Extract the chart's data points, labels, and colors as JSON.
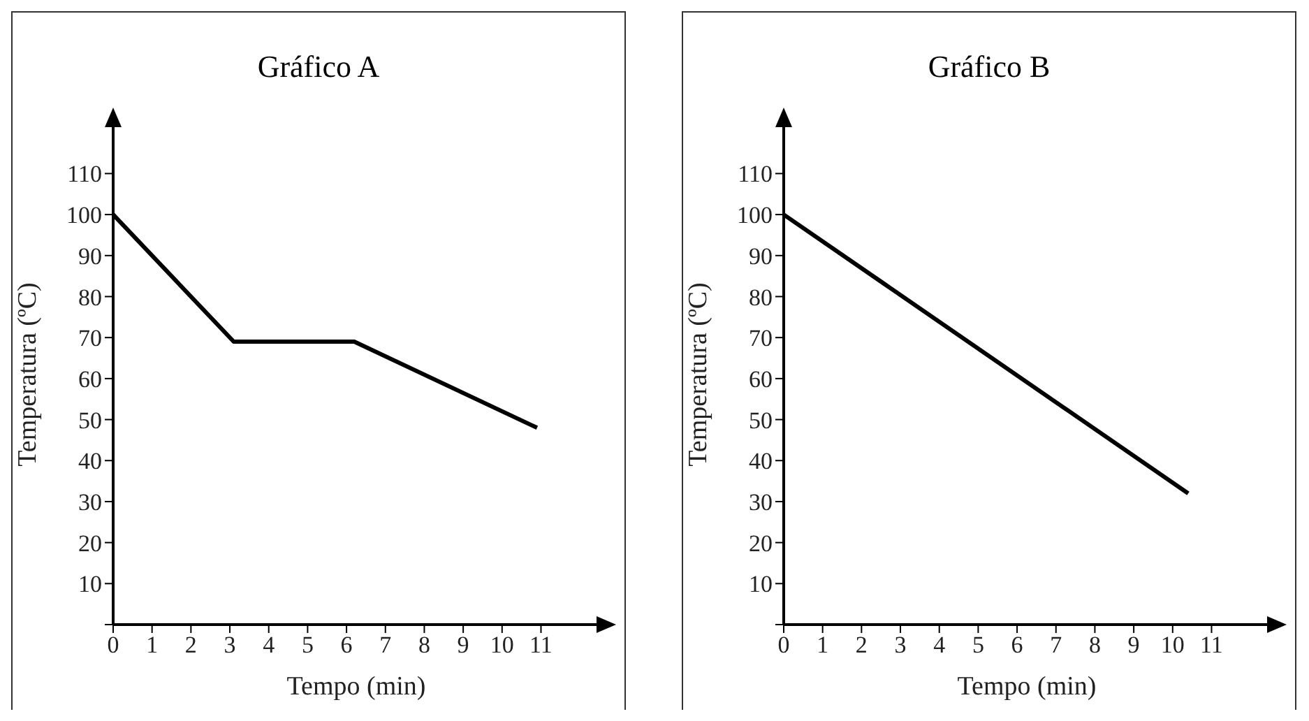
{
  "chart_data": [
    {
      "type": "line",
      "title": "Gráfico A",
      "xlabel": "Tempo (min)",
      "ylabel": "Temperatura (ºC)",
      "xlim": [
        0,
        12.5
      ],
      "xticks": [
        0,
        1,
        2,
        3,
        4,
        5,
        6,
        7,
        8,
        9,
        10,
        11
      ],
      "ylim": [
        0,
        122
      ],
      "yticks": [
        {
          "value": 0,
          "label": null
        },
        10,
        20,
        30,
        40,
        50,
        60,
        70,
        80,
        90,
        100,
        110
      ],
      "grid": false,
      "marker": "none",
      "line_style": "solid",
      "series": [
        {
          "color": "#000000",
          "x": [
            0,
            3.1,
            6.2,
            10.9
          ],
          "values": [
            100,
            69,
            69,
            48
          ]
        }
      ]
    },
    {
      "type": "line",
      "title": "Gráfico B",
      "xlabel": "Tempo (min)",
      "ylabel": "Temperatura (ºC)",
      "xlim": [
        0,
        12.5
      ],
      "xticks": [
        0,
        1,
        2,
        3,
        4,
        5,
        6,
        7,
        8,
        9,
        10,
        11
      ],
      "ylim": [
        0,
        122
      ],
      "yticks": [
        {
          "value": 0,
          "label": null
        },
        10,
        20,
        30,
        40,
        50,
        60,
        70,
        80,
        90,
        100,
        110
      ],
      "grid": false,
      "marker": "none",
      "line_style": "solid",
      "series": [
        {
          "color": "#000000",
          "x": [
            0,
            10.4
          ],
          "values": [
            100,
            32
          ]
        }
      ]
    }
  ]
}
